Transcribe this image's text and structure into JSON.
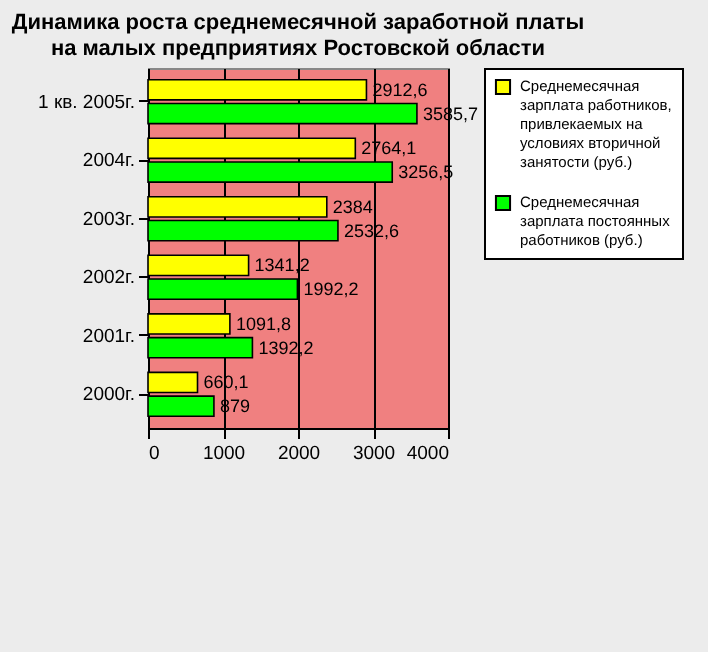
{
  "chart_data": {
    "type": "bar",
    "orientation": "horizontal",
    "title": "Динамика роста среднемесячной заработной платы на малых предприятиях Ростовской области",
    "categories": [
      "1 кв. 2005г.",
      "2004г.",
      "2003г.",
      "2002г.",
      "2001г.",
      "2000г."
    ],
    "series": [
      {
        "name": "Среднемесячная зарплата работников, привлекаемых на условиях вторичной занятости (руб.)",
        "color": "#ffff00",
        "values": [
          2912.6,
          2764.1,
          2384,
          1341.2,
          1091.8,
          660.1
        ],
        "value_labels": [
          "2912,6",
          "2764,1",
          "2384",
          "1341,2",
          "1091,8",
          "660,1"
        ]
      },
      {
        "name": "Среднемесячная зарплата постоянных работников (руб.)",
        "color": "#00ff00",
        "values": [
          3585.7,
          3256.5,
          2532.6,
          1992.2,
          1392.2,
          879
        ],
        "value_labels": [
          "3585,7",
          "3256,5",
          "2532,6",
          "1992,2",
          "1392,2",
          "879"
        ]
      }
    ],
    "xlim": [
      0,
      4000
    ],
    "xticks": [
      0,
      1000,
      2000,
      3000,
      4000
    ],
    "grid": "x",
    "legend": "right"
  }
}
